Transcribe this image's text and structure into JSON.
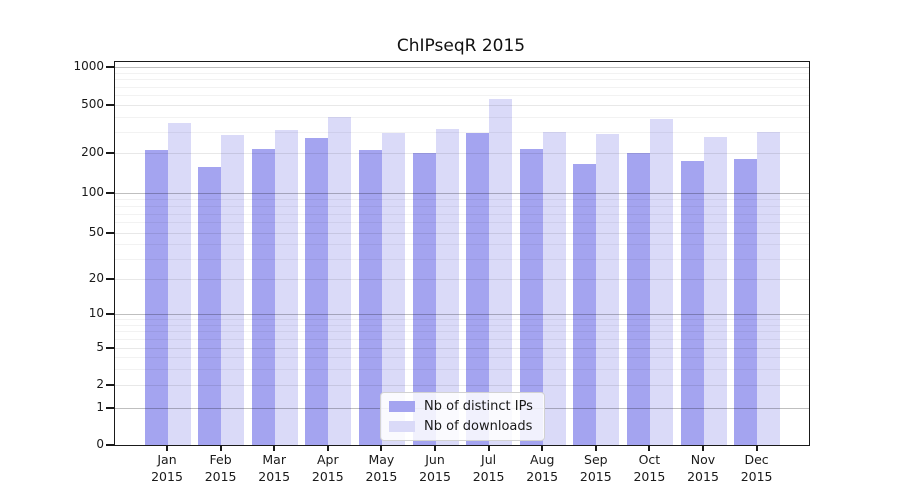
{
  "chart_data": {
    "type": "bar",
    "title": "ChIPseqR 2015",
    "categories": [
      "Jan",
      "Feb",
      "Mar",
      "Apr",
      "May",
      "Jun",
      "Jul",
      "Aug",
      "Sep",
      "Oct",
      "Nov",
      "Dec"
    ],
    "year": "2015",
    "series": [
      {
        "name": "Nb of distinct IPs",
        "color": "#a4a4f0",
        "values": [
          210,
          158,
          215,
          265,
          212,
          200,
          292,
          215,
          165,
          200,
          175,
          180
        ]
      },
      {
        "name": "Nb of downloads",
        "color": "#dadaf8",
        "values": [
          355,
          280,
          308,
          400,
          293,
          315,
          560,
          300,
          290,
          380,
          270,
          296
        ]
      }
    ],
    "y_axis": {
      "scale": "log-like",
      "tick_labels": [
        "0",
        "1",
        "2",
        "5",
        "10",
        "20",
        "50",
        "100",
        "200",
        "500",
        "1000"
      ],
      "ylim": [
        0,
        1000
      ]
    },
    "grid": true,
    "legend_position": "lower center",
    "axis_color": "#1a1a1a",
    "background_color": "#ffffff"
  }
}
